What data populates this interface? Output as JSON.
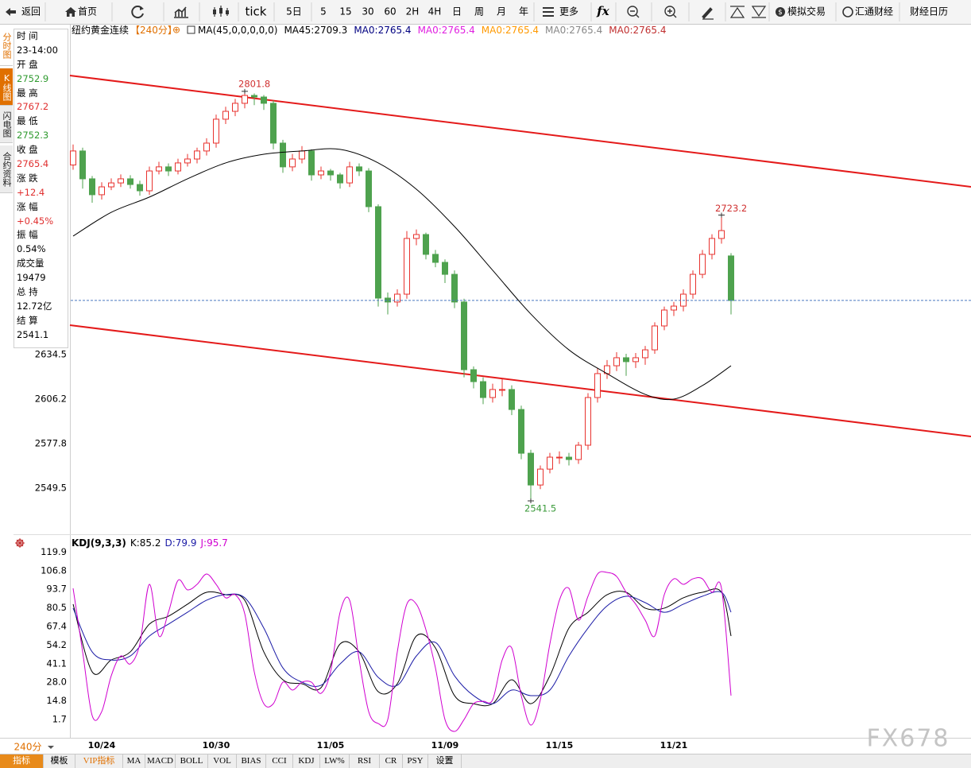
{
  "toolbar": {
    "back": "返回",
    "home": "首页",
    "periods": [
      "tick",
      "5日",
      "5",
      "15",
      "30",
      "60",
      "2H",
      "4H",
      "日",
      "周",
      "月",
      "年"
    ],
    "more": "更多",
    "fx": "fx",
    "sim_trade": "模拟交易",
    "huitong": "汇通财经",
    "calendar": "财经日历"
  },
  "side_tabs": [
    "分时图",
    "K线图",
    "闪电图",
    "合约资料"
  ],
  "info_panel": [
    {
      "label": "时 间",
      "value": "23-14:00",
      "color": "#000000"
    },
    {
      "label": "开 盘",
      "value": 2752.9,
      "color": "#2e9a2e"
    },
    {
      "label": "最 高",
      "value": 2767.2,
      "color": "#e03030"
    },
    {
      "label": "最 低",
      "value": 2752.3,
      "color": "#2e9a2e"
    },
    {
      "label": "收 盘",
      "value": 2765.4,
      "color": "#e03030"
    },
    {
      "label": "涨 跌",
      "value": "+12.4",
      "color": "#e03030"
    },
    {
      "label": "涨 幅",
      "value": "+0.45%",
      "color": "#e03030"
    },
    {
      "label": "振 幅",
      "value": "0.54%",
      "color": "#000000"
    },
    {
      "label": "成交量",
      "value": 19479,
      "color": "#000000"
    },
    {
      "label": "总 持",
      "value": "12.72亿",
      "color": "#000000"
    },
    {
      "label": "结 算",
      "value": 2541.1,
      "color": "#000000"
    }
  ],
  "chart_data": {
    "type": "candlestick",
    "title": "纽约黄金连续",
    "period": "【240分】",
    "ma_params": "MA(45,0,0,0,0,0)",
    "ma_readouts": [
      {
        "text": "MA45:2709.3",
        "color": "#000000"
      },
      {
        "text": "MA0:2765.4",
        "color": "#000080"
      },
      {
        "text": "MA0:2765.4",
        "color": "#e020e0"
      },
      {
        "text": "MA0:2765.4",
        "color": "#ff9900"
      },
      {
        "text": "MA0:2765.4",
        "color": "#888888"
      },
      {
        "text": "MA0:2765.4",
        "color": "#c03030"
      }
    ],
    "categories": [
      null,
      null,
      null,
      "10/24",
      null,
      null,
      null,
      null,
      null,
      null,
      null,
      null,
      null,
      null,
      null,
      "10/30",
      null,
      null,
      null,
      null,
      null,
      null,
      null,
      null,
      null,
      null,
      null,
      "11/05",
      null,
      null,
      null,
      null,
      null,
      null,
      null,
      null,
      null,
      null,
      null,
      "11/09",
      null,
      null,
      null,
      null,
      null,
      null,
      null,
      null,
      null,
      null,
      null,
      "11/15",
      null,
      null,
      null,
      null,
      null,
      null,
      null,
      null,
      null,
      null,
      null,
      "11/21",
      null,
      null,
      null,
      null,
      null,
      null
    ],
    "candles": [
      [
        2755.0,
        2768.0,
        2752.0,
        2763.9
      ],
      [
        2763.9,
        2766.0,
        2740.0,
        2746.2
      ],
      [
        2746.2,
        2748.0,
        2731.0,
        2736.1
      ],
      [
        2736.1,
        2744.0,
        2733.0,
        2741.1
      ],
      [
        2741.1,
        2746.5,
        2739.0,
        2743.6
      ],
      [
        2743.6,
        2749.0,
        2741.0,
        2746.2
      ],
      [
        2746.2,
        2748.5,
        2740.0,
        2742.6
      ],
      [
        2742.6,
        2745.0,
        2735.5,
        2738.6
      ],
      [
        2738.6,
        2754.0,
        2736.0,
        2751.2
      ],
      [
        2751.2,
        2757.0,
        2749.0,
        2753.8
      ],
      [
        2753.8,
        2756.0,
        2748.0,
        2751.2
      ],
      [
        2751.2,
        2759.0,
        2749.0,
        2756.3
      ],
      [
        2756.3,
        2762.0,
        2754.0,
        2758.8
      ],
      [
        2758.8,
        2766.0,
        2756.0,
        2763.9
      ],
      [
        2763.9,
        2772.0,
        2761.0,
        2768.9
      ],
      [
        2768.9,
        2787.0,
        2766.0,
        2784.1
      ],
      [
        2784.1,
        2792.0,
        2781.0,
        2789.1
      ],
      [
        2789.1,
        2797.0,
        2786.0,
        2794.2
      ],
      [
        2794.2,
        2801.8,
        2791.0,
        2799.2
      ],
      [
        2799.2,
        2800.5,
        2793.0,
        2798.2
      ],
      [
        2798.2,
        2799.5,
        2790.0,
        2794.2
      ],
      [
        2794.2,
        2796.0,
        2765.0,
        2768.9
      ],
      [
        2768.9,
        2771.0,
        2750.0,
        2753.8
      ],
      [
        2753.8,
        2762.0,
        2751.0,
        2758.8
      ],
      [
        2758.8,
        2767.0,
        2756.0,
        2763.9
      ],
      [
        2763.9,
        2765.0,
        2745.0,
        2748.7
      ],
      [
        2748.7,
        2754.0,
        2746.0,
        2751.2
      ],
      [
        2751.2,
        2752.5,
        2745.0,
        2748.7
      ],
      [
        2748.7,
        2750.0,
        2740.0,
        2743.6
      ],
      [
        2743.6,
        2757.0,
        2741.0,
        2753.8
      ],
      [
        2753.8,
        2756.0,
        2748.0,
        2751.2
      ],
      [
        2751.2,
        2753.0,
        2725.0,
        2728.5
      ],
      [
        2728.5,
        2730.0,
        2665.0,
        2670.4
      ],
      [
        2670.4,
        2674.0,
        2660.0,
        2667.9
      ],
      [
        2667.9,
        2676.0,
        2665.0,
        2672.9
      ],
      [
        2672.9,
        2713.0,
        2670.0,
        2708.3
      ],
      [
        2708.3,
        2714.0,
        2704.0,
        2710.8
      ],
      [
        2710.8,
        2712.0,
        2695.0,
        2698.2
      ],
      [
        2698.2,
        2701.0,
        2690.0,
        2693.1
      ],
      [
        2693.1,
        2695.0,
        2680.0,
        2685.5
      ],
      [
        2685.5,
        2688.0,
        2664.0,
        2667.9
      ],
      [
        2667.9,
        2670.0,
        2620.0,
        2624.9
      ],
      [
        2624.9,
        2627.0,
        2613.0,
        2617.3
      ],
      [
        2617.3,
        2620.0,
        2603.0,
        2607.2
      ],
      [
        2607.2,
        2616.0,
        2604.0,
        2612.3
      ],
      [
        2612.3,
        2619.0,
        2608.0,
        2612.3
      ],
      [
        2612.3,
        2615.0,
        2596.0,
        2599.6
      ],
      [
        2599.6,
        2602.0,
        2568.0,
        2571.8
      ],
      [
        2571.8,
        2574.0,
        2541.5,
        2551.6
      ],
      [
        2551.6,
        2564.0,
        2549.0,
        2561.7
      ],
      [
        2561.7,
        2572.0,
        2559.0,
        2569.3
      ],
      [
        2569.3,
        2573.0,
        2565.0,
        2569.3
      ],
      [
        2569.3,
        2572.0,
        2564.0,
        2567.8
      ],
      [
        2567.8,
        2579.0,
        2565.0,
        2576.9
      ],
      [
        2576.9,
        2610.0,
        2574.0,
        2607.2
      ],
      [
        2607.2,
        2626.0,
        2604.0,
        2622.4
      ],
      [
        2622.4,
        2631.0,
        2619.0,
        2627.4
      ],
      [
        2627.4,
        2636.0,
        2624.0,
        2632.5
      ],
      [
        2632.5,
        2635.0,
        2621.0,
        2630.0
      ],
      [
        2630.0,
        2635.5,
        2626.0,
        2632.5
      ],
      [
        2632.5,
        2640.0,
        2628.0,
        2637.5
      ],
      [
        2637.5,
        2655.0,
        2635.0,
        2652.7
      ],
      [
        2652.7,
        2665.0,
        2650.0,
        2662.8
      ],
      [
        2662.8,
        2668.0,
        2659.0,
        2665.3
      ],
      [
        2665.3,
        2676.0,
        2662.0,
        2672.9
      ],
      [
        2672.9,
        2688.0,
        2670.0,
        2685.5
      ],
      [
        2685.5,
        2701.0,
        2683.0,
        2698.2
      ],
      [
        2698.2,
        2711.0,
        2695.0,
        2708.3
      ],
      [
        2708.3,
        2723.2,
        2705.0,
        2713.3
      ],
      [
        2697.2,
        2699.0,
        2660.0,
        2668.9
      ]
    ],
    "up_color": "#e8322e",
    "down_color": "#4ea24e",
    "highlight_color": "#d03030",
    "low_label_color": "#3a9a3a",
    "ma_line": {
      "color": "#000000",
      "x": [
        0,
        4,
        8,
        12,
        16,
        20,
        24,
        28,
        32,
        36,
        40,
        44,
        48,
        52,
        56,
        60,
        63,
        66,
        69
      ],
      "values": [
        2709.8,
        2724.9,
        2734.6,
        2746.2,
        2756.3,
        2761.8,
        2763.9,
        2764.9,
        2756.3,
        2739.6,
        2715.9,
        2688.1,
        2660.3,
        2637.5,
        2622.4,
        2609.2,
        2606.2,
        2614.8,
        2627.4
      ]
    },
    "ylim": [
      2520.3,
      2835.6
    ],
    "yticks": [
      2549.5,
      2577.8,
      2606.2,
      2634.5
    ],
    "grid": false
  },
  "kdj": {
    "type": "line",
    "title": "KDJ(9,3,3)",
    "readouts": [
      {
        "text": "K:85.2",
        "color": "#000000"
      },
      {
        "text": "D:79.9",
        "color": "#1a1aa6"
      },
      {
        "text": "J:95.7",
        "color": "#d000d0"
      }
    ],
    "ylim": [
      -9.5,
      123.6
    ],
    "yticks": [
      1.7,
      14.8,
      {
        "value": 28,
        "label": "28.0"
      },
      41.1,
      54.2,
      67.4,
      80.5,
      93.7,
      106.8,
      119.9
    ],
    "series": [
      {
        "color": "#000000",
        "x": [
          0,
          2,
          4,
          6,
          8,
          10,
          12,
          14,
          16,
          18,
          20,
          22,
          24,
          26,
          28,
          30,
          32,
          34,
          36,
          38,
          40,
          42,
          44,
          46,
          48,
          50,
          52,
          54,
          56,
          58,
          60,
          62,
          64,
          66,
          68,
          69
        ],
        "values": [
          83.2,
          35.4,
          43.8,
          49.5,
          69.1,
          74.7,
          83.2,
          91.6,
          89.9,
          86.0,
          49.5,
          29.8,
          27.0,
          24.2,
          55.1,
          49.5,
          21.4,
          27.0,
          60.7,
          52.3,
          18.6,
          12.9,
          12.9,
          29.8,
          12.9,
          32.6,
          66.3,
          77.5,
          89.9,
          91.6,
          80.4,
          80.4,
          87.7,
          91.6,
          91.6,
          60.7
        ]
      },
      {
        "color": "#1a1aa6",
        "x": [
          0,
          2,
          4,
          6,
          8,
          10,
          12,
          14,
          16,
          18,
          20,
          22,
          24,
          26,
          28,
          30,
          32,
          34,
          36,
          38,
          40,
          42,
          44,
          46,
          48,
          50,
          52,
          54,
          56,
          58,
          60,
          62,
          64,
          66,
          68,
          69
        ],
        "values": [
          80.4,
          49.5,
          43.8,
          46.6,
          60.7,
          69.1,
          77.5,
          86.0,
          89.9,
          87.7,
          66.3,
          38.2,
          28.1,
          25.9,
          41.0,
          49.5,
          31.5,
          25.9,
          46.6,
          56.2,
          32.6,
          18.6,
          12.9,
          22.5,
          18.6,
          22.5,
          46.6,
          66.3,
          82.0,
          88.8,
          84.3,
          77.5,
          83.2,
          88.8,
          91.6,
          77.5
        ]
      },
      {
        "color": "#d000d0",
        "x": [
          0,
          1,
          2,
          3,
          4,
          5,
          6,
          7,
          8,
          9,
          10,
          11,
          12,
          13,
          14,
          15,
          16,
          17,
          18,
          19,
          20,
          21,
          22,
          23,
          24,
          25,
          26,
          27,
          28,
          29,
          30,
          31,
          32,
          33,
          34,
          35,
          36,
          37,
          38,
          39,
          40,
          41,
          42,
          43,
          44,
          45,
          46,
          47,
          48,
          49,
          50,
          51,
          52,
          53,
          54,
          55,
          56,
          57,
          58,
          59,
          60,
          61,
          62,
          63,
          64,
          65,
          66,
          67,
          68,
          69
        ],
        "values": [
          94.4,
          49.5,
          4.5,
          7.3,
          32.6,
          46.6,
          41.0,
          55.1,
          97.2,
          60.7,
          77.5,
          100.0,
          93.3,
          97.2,
          104.5,
          97.2,
          87.7,
          89.9,
          76.4,
          35.4,
          12.9,
          12.9,
          28.1,
          22.5,
          28.1,
          28.1,
          20.2,
          35.4,
          77.5,
          86.0,
          43.8,
          7.3,
          -1.1,
          1.7,
          49.5,
          83.2,
          83.2,
          65.2,
          38.2,
          1.7,
          -6.7,
          1.7,
          12.9,
          14.6,
          15.7,
          43.8,
          52.3,
          18.6,
          -2.2,
          15.7,
          55.1,
          86.0,
          94.4,
          71.9,
          88.8,
          104.5,
          105.6,
          102.8,
          91.6,
          83.2,
          71.9,
          60.7,
          89.9,
          101.1,
          97.2,
          101.1,
          101.1,
          91.6,
          94.4,
          18.6
        ]
      }
    ]
  },
  "footer": {
    "period_select": "240分",
    "tabs": [
      "指标",
      "模板",
      "VIP指标",
      "MA",
      "MACD",
      "BOLL",
      "VOL",
      "BIAS",
      "CCI",
      "KDJ",
      "LW%",
      "RSI",
      "CR",
      "PSY",
      "设置"
    ]
  },
  "watermark": "FX678"
}
